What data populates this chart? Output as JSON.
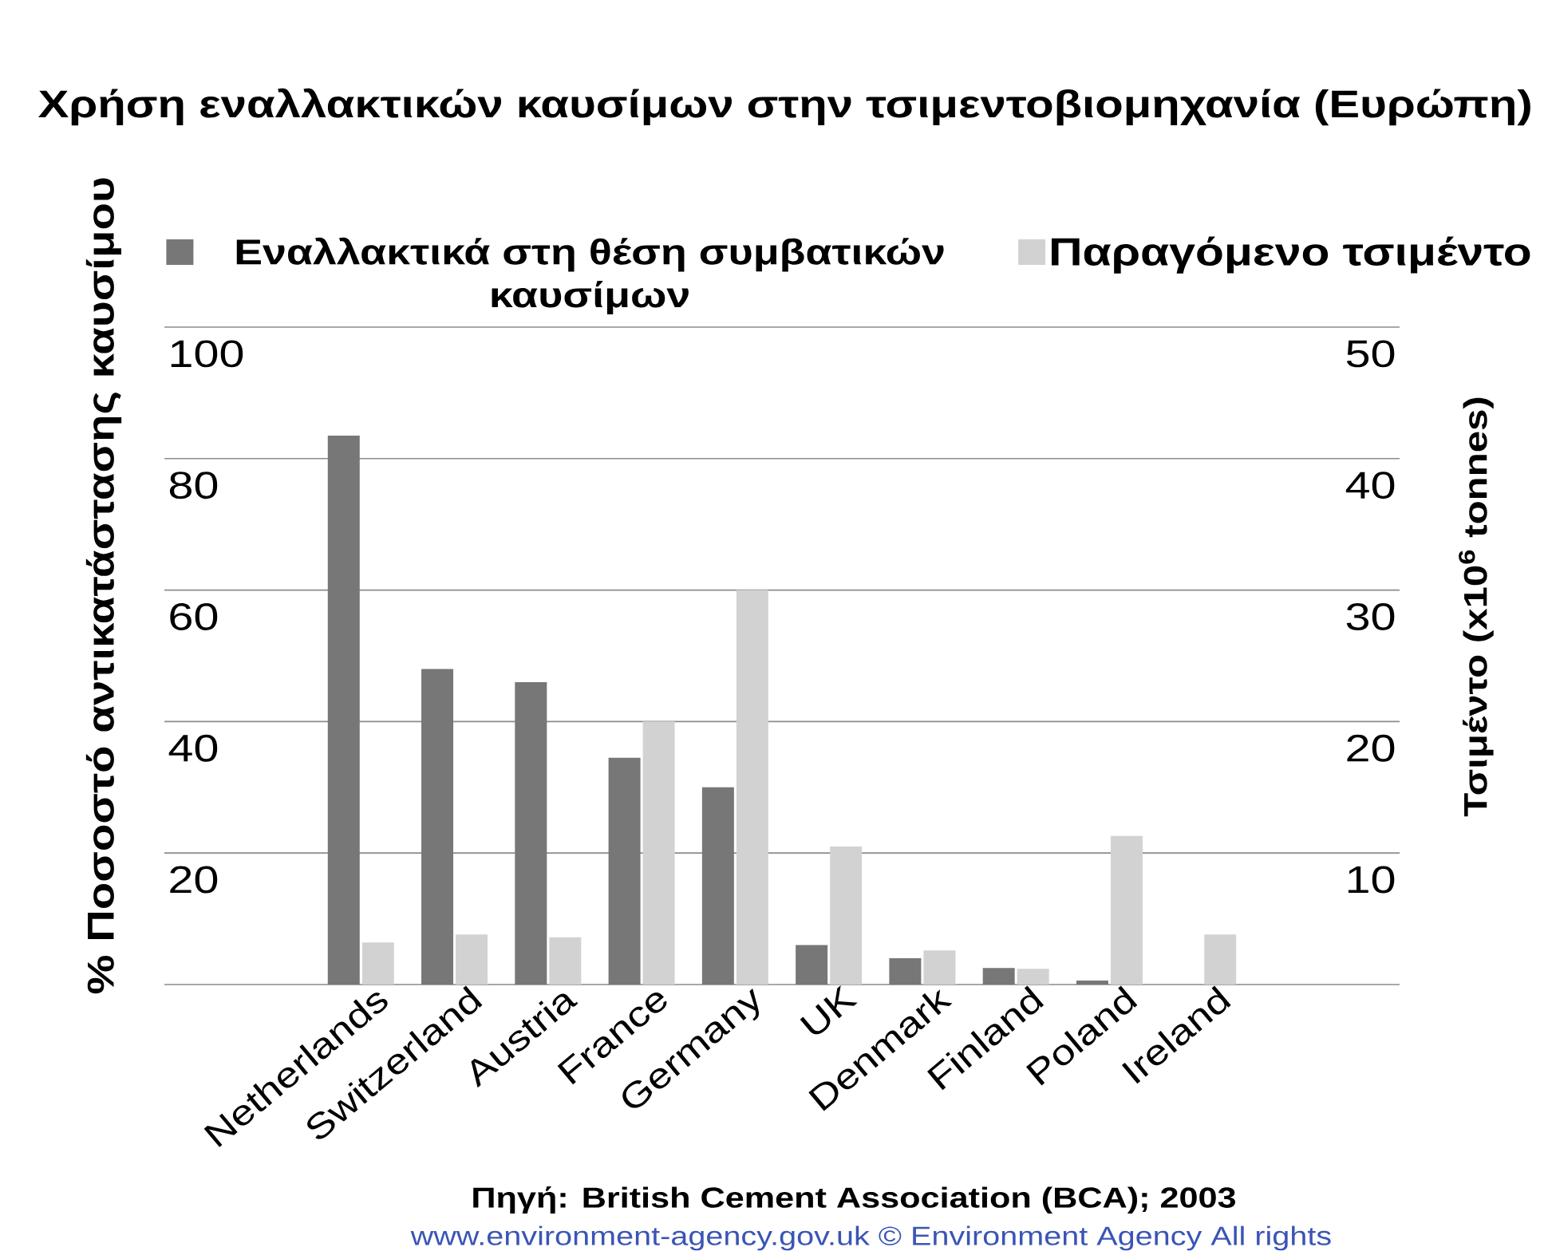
{
  "chart_data": {
    "type": "bar",
    "title": "Χρήση εναλλακτικών καυσίμων στην τσιμεντοβιομηχανία (Ευρώπη)",
    "ylabel": "% Ποσοστό αντικατάστασης καυσίμου",
    "y2label": "Τσιμέντο (x10$^{6}$ tonnes)",
    "categories": [
      "Netherlands",
      "Switzerland",
      "Austria",
      "France",
      "Germany",
      "UK",
      "Denmark",
      "Finland",
      "Poland",
      "Ireland"
    ],
    "series": [
      {
        "name": "Εναλλακτικά στη θέση συμβατικών καυσίμων",
        "color": "#777777",
        "values": [
          83.5,
          48,
          46,
          34.5,
          30,
          6,
          4,
          2.5,
          0.6,
          null
        ]
      },
      {
        "name": "Παραγόμενο τσιμέντο",
        "color": "#d2d2d2",
        "axis": "y2",
        "values": [
          3.2,
          3.8,
          3.6,
          20,
          30,
          10.5,
          2.6,
          1.2,
          11.3,
          3.8
        ]
      }
    ],
    "ylim": [
      0,
      100
    ],
    "yticks": [
      {
        "value": 0,
        "label": null
      },
      20,
      40,
      60,
      80,
      100
    ],
    "y2lim": [
      0,
      50
    ],
    "y2ticks": [
      10,
      20,
      30,
      40,
      50
    ],
    "grid": "y",
    "legend": "top",
    "annotations": [
      "Πηγή: British Cement Association (BCA); 2003",
      "www.environment-agency.gov.uk © Environment Agency All rights"
    ]
  }
}
